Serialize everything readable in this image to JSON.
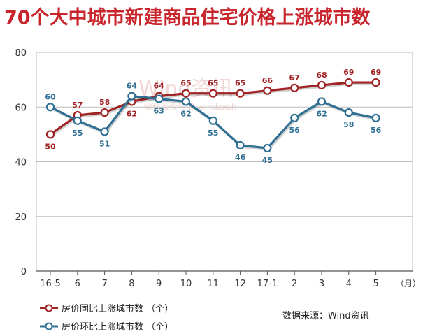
{
  "title": "70个大中城市新建商品住宅价格上涨城市数",
  "watermark": "Wind资讯",
  "watermark_sub": "微信公众号ID:windzxsh",
  "source": "数据来源：Wind资讯",
  "colors": {
    "title": "#c8252c",
    "series1": "#a02326",
    "series2": "#2f6f93",
    "grid": "#bdbdbd"
  },
  "chart_data": {
    "type": "line",
    "categories": [
      "16-5",
      "6",
      "7",
      "8",
      "9",
      "10",
      "11",
      "12",
      "17-1",
      "2",
      "3",
      "4",
      "5"
    ],
    "x_unit": "（月）",
    "ylim": [
      0,
      80
    ],
    "yticks": [
      0,
      20,
      40,
      60,
      80
    ],
    "grid": true,
    "legend_position": "bottom-left",
    "series": [
      {
        "name": "房价同比上涨城市数 （个）",
        "values": [
          50,
          57,
          58,
          62,
          64,
          65,
          65,
          65,
          66,
          67,
          68,
          69,
          69
        ],
        "labels": [
          "50",
          "57",
          "58",
          "62",
          "64",
          "65",
          "65",
          "65",
          "66",
          "67",
          "68",
          "69",
          "69"
        ]
      },
      {
        "name": "房价环比上涨城市数 （个）",
        "values": [
          60,
          55,
          51,
          64,
          63,
          62,
          55,
          46,
          45,
          56,
          62,
          58,
          56
        ],
        "labels": [
          "60",
          "55",
          "51",
          "64",
          "63",
          "62",
          "55",
          "46",
          "45",
          "56",
          "62",
          "58",
          "56"
        ]
      }
    ]
  }
}
